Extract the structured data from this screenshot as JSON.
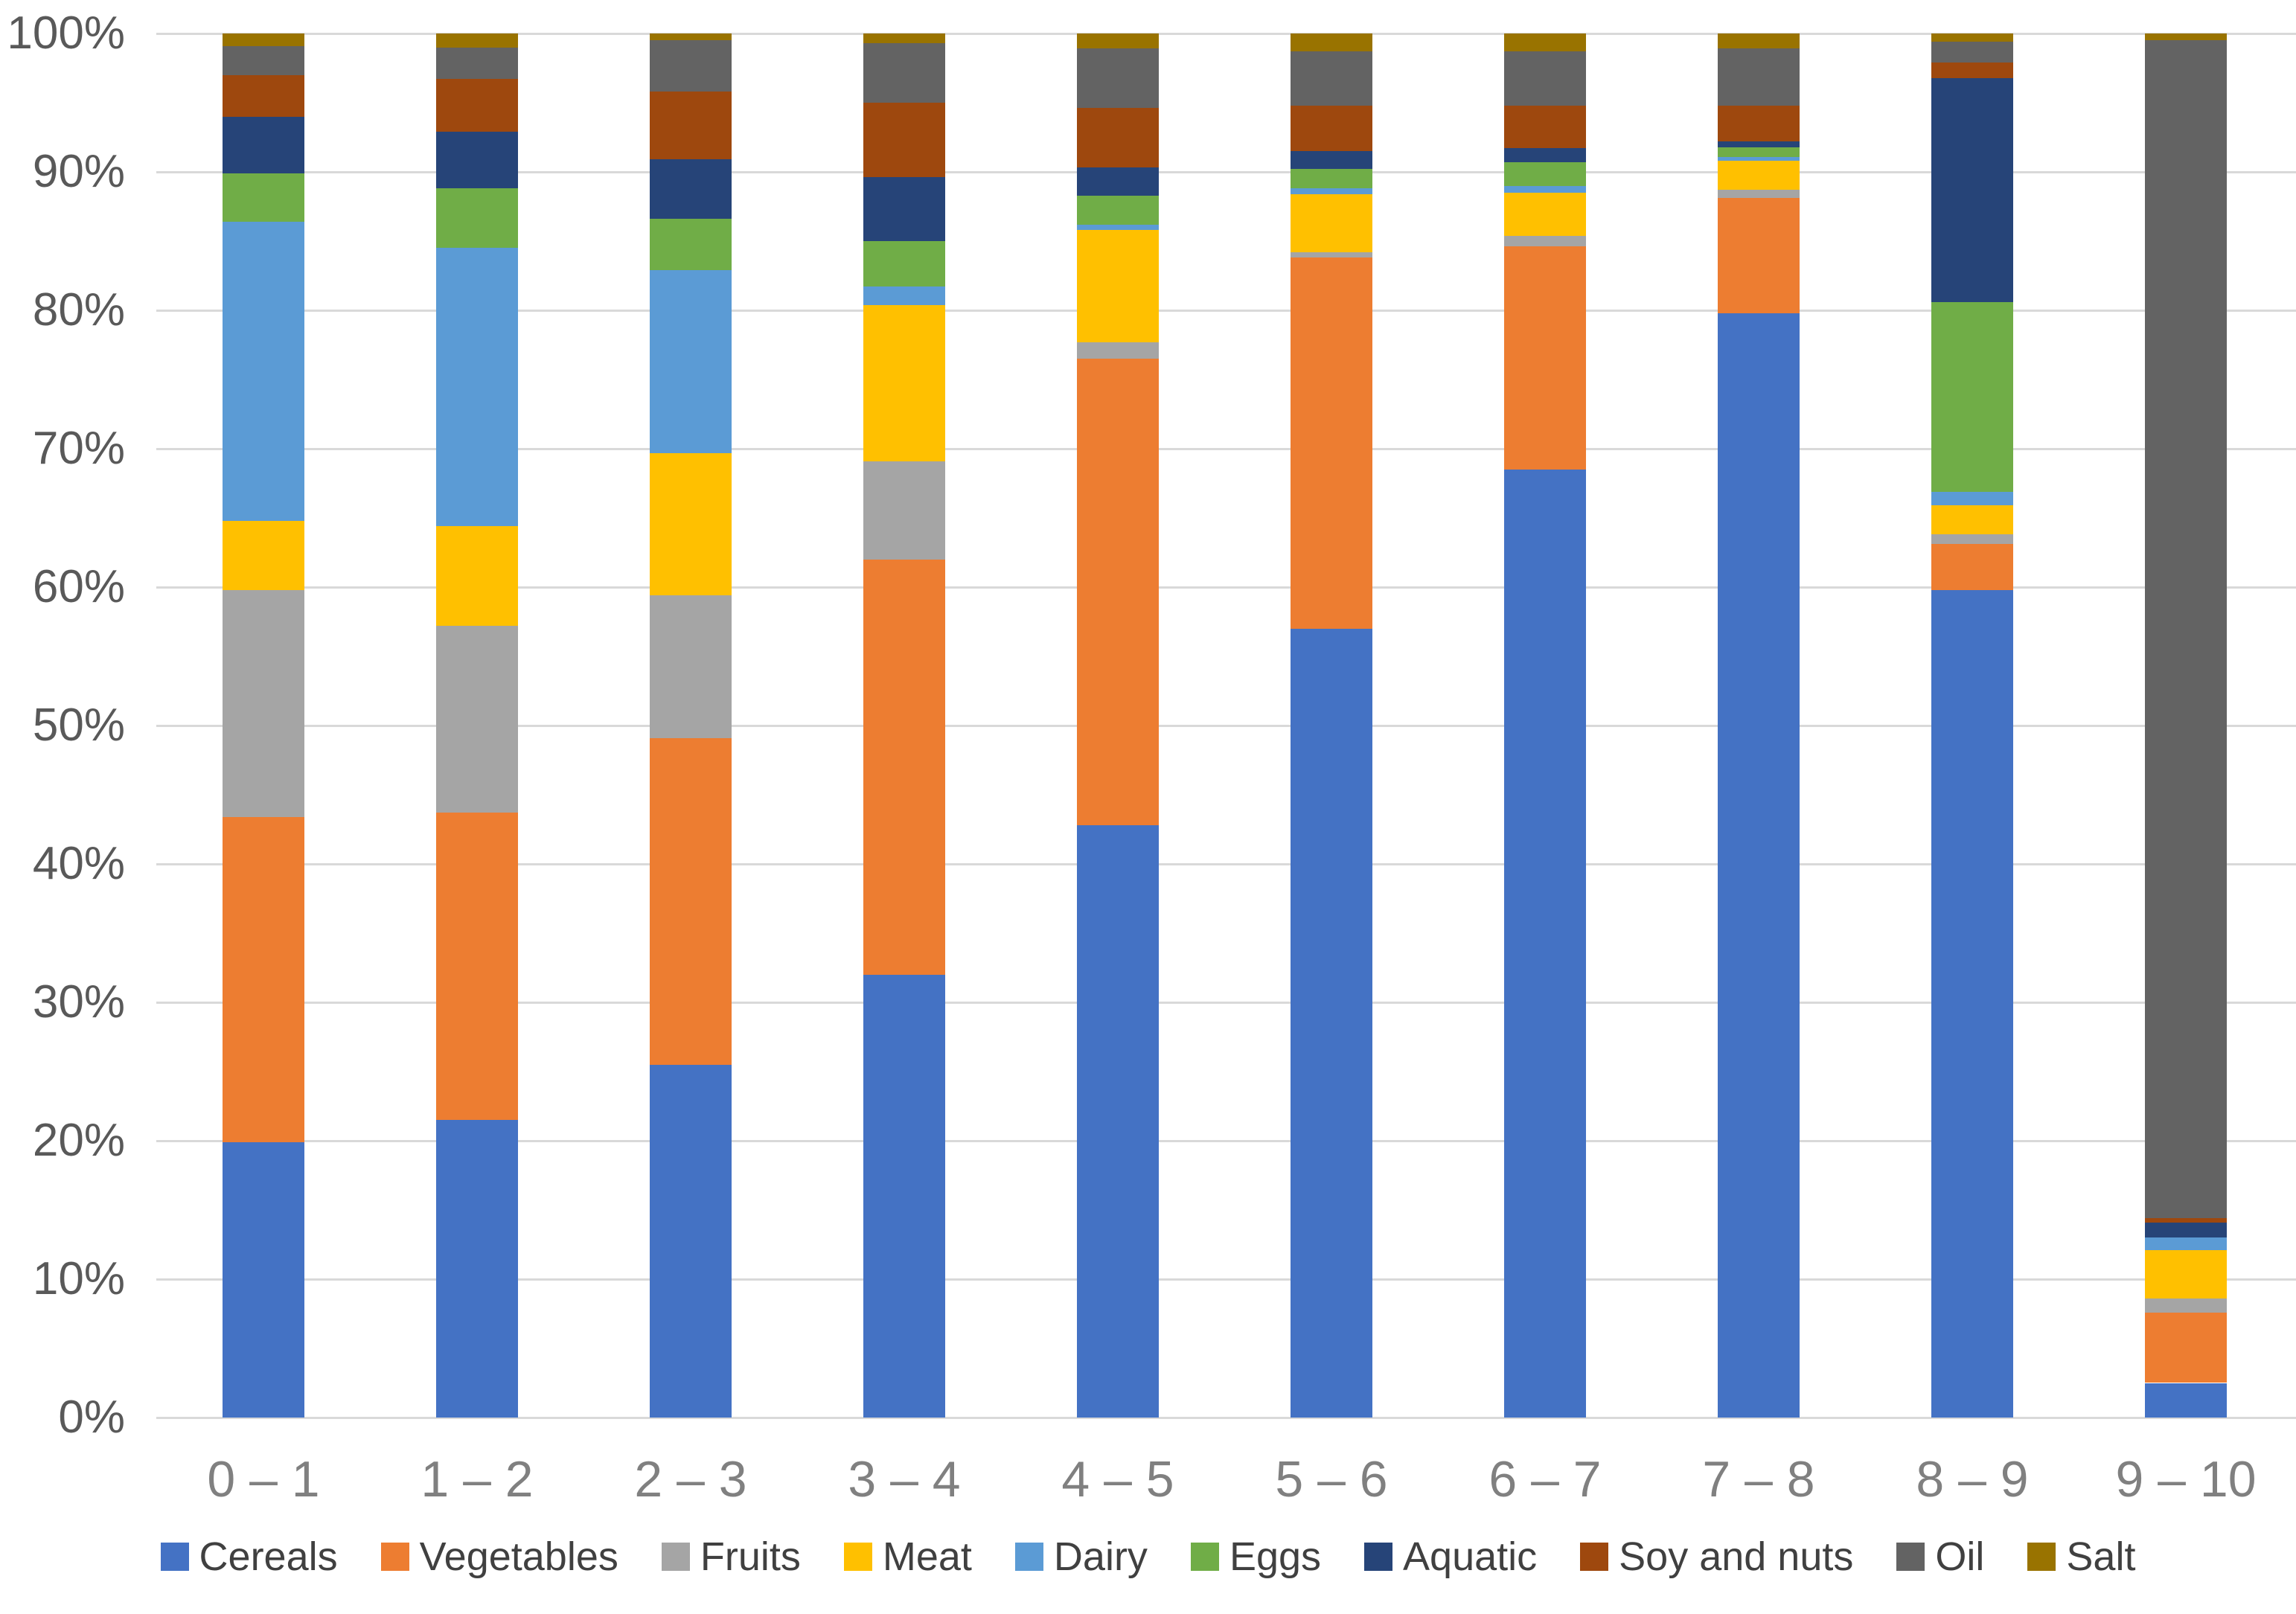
{
  "chart_data": {
    "type": "bar",
    "stacked": true,
    "stacking": "percent",
    "title": "",
    "xlabel": "",
    "ylabel": "",
    "categories": [
      "0 – 1",
      "1 – 2",
      "2 – 3",
      "3 – 4",
      "4 – 5",
      "5 – 6",
      "6 – 7",
      "7 – 8",
      "8 – 9",
      "9 – 10"
    ],
    "series": [
      {
        "name": "Cereals",
        "color": "#4472c4",
        "values": [
          19.9,
          21.5,
          25.5,
          32.0,
          42.8,
          57.0,
          68.5,
          79.8,
          59.8,
          2.5
        ]
      },
      {
        "name": "Vegetables",
        "color": "#ed7d31",
        "values": [
          23.5,
          22.2,
          23.6,
          30.0,
          33.7,
          26.8,
          16.1,
          8.3,
          3.3,
          5.1
        ]
      },
      {
        "name": "Fruits",
        "color": "#a5a5a5",
        "values": [
          16.4,
          13.5,
          10.3,
          7.1,
          1.2,
          0.4,
          0.8,
          0.6,
          0.7,
          1.0
        ]
      },
      {
        "name": "Meat",
        "color": "#ffc000",
        "values": [
          5.0,
          7.2,
          10.3,
          11.3,
          8.1,
          4.2,
          3.1,
          2.1,
          2.1,
          3.5
        ]
      },
      {
        "name": "Dairy",
        "color": "#5b9bd5",
        "values": [
          21.6,
          20.1,
          13.2,
          1.3,
          0.4,
          0.4,
          0.5,
          0.3,
          1.0,
          0.9
        ]
      },
      {
        "name": "Eggs",
        "color": "#70ad47",
        "values": [
          3.5,
          4.3,
          3.7,
          3.3,
          2.1,
          1.4,
          1.7,
          0.7,
          13.7,
          0.0
        ]
      },
      {
        "name": "Aquatic",
        "color": "#264478",
        "values": [
          4.1,
          4.1,
          4.3,
          4.6,
          2.0,
          1.3,
          1.0,
          0.4,
          16.2,
          1.1
        ]
      },
      {
        "name": "Soy and nuts",
        "color": "#9e480e",
        "values": [
          3.0,
          3.8,
          4.9,
          5.4,
          4.3,
          3.3,
          3.1,
          2.6,
          1.1,
          0.3
        ]
      },
      {
        "name": "Oil",
        "color": "#636363",
        "values": [
          2.1,
          2.3,
          3.7,
          4.3,
          4.3,
          3.9,
          3.9,
          4.1,
          1.5,
          85.1
        ]
      },
      {
        "name": "Salt",
        "color": "#997300",
        "values": [
          0.9,
          1.0,
          0.5,
          0.7,
          1.1,
          1.3,
          1.3,
          1.1,
          0.6,
          0.5
        ]
      }
    ],
    "y_ticks": [
      "0%",
      "10%",
      "20%",
      "30%",
      "40%",
      "50%",
      "60%",
      "70%",
      "80%",
      "90%",
      "100%"
    ],
    "ylim": [
      0,
      100
    ],
    "grid": true,
    "gridline_color": "#d9d9d9",
    "axis_text_color": "#595959",
    "legend_position": "bottom"
  }
}
